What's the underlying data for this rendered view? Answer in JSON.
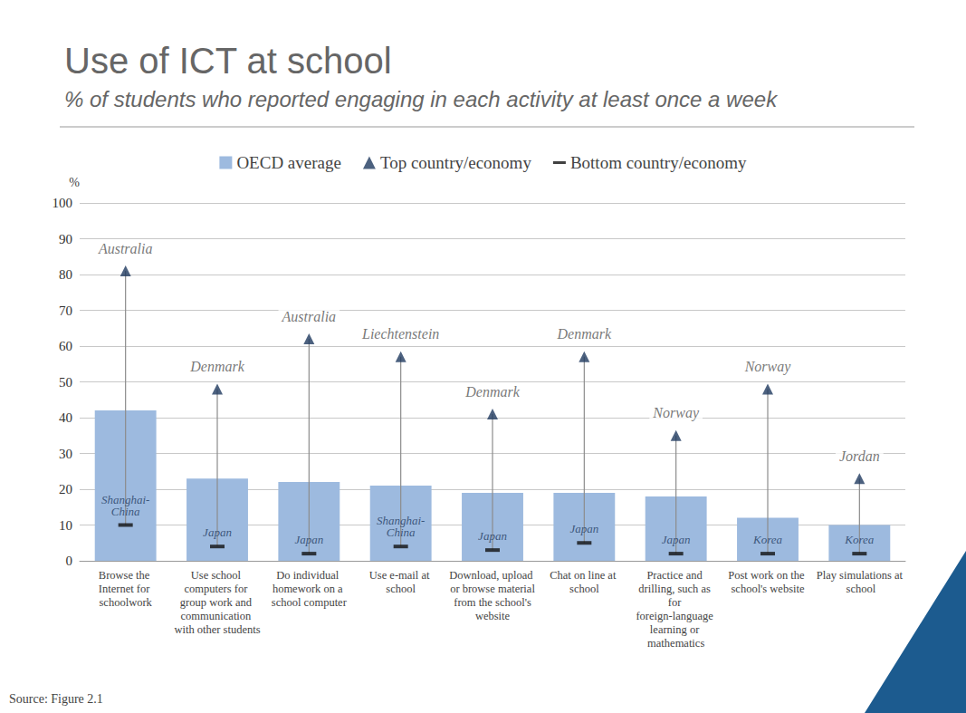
{
  "chart_data": {
    "type": "bar",
    "title": "Use of ICT at school",
    "subtitle": "% of students who reported engaging in each activity at least once a week",
    "source": "Source: Figure 2.1",
    "y_label": "%",
    "categories": [
      "Browse the Internet for schoolwork",
      "Use school computers for group work and communication with other students",
      "Do individual homework on a school computer",
      "Use e-mail at school",
      "Download, upload or browse material from the school's website",
      "Chat on line at school",
      "Practice and drilling, such as for foreign-language learning or mathematics",
      "Post work on the school's website",
      "Play simulations at school"
    ],
    "series": [
      {
        "name": "OECD average",
        "type": "bar",
        "color": "#9dbadf",
        "values": [
          42,
          23,
          22,
          21,
          19,
          19,
          18,
          12,
          10
        ]
      },
      {
        "name": "Top country/economy",
        "type": "scatter",
        "marker": "triangle",
        "color": "#1f3a5f",
        "values": [
          81,
          48,
          62,
          57,
          41,
          57,
          35,
          48,
          23
        ],
        "countries": [
          "Australia",
          "Denmark",
          "Australia",
          "Liechtenstein",
          "Denmark",
          "Denmark",
          "Norway",
          "Norway",
          "Jordan"
        ]
      },
      {
        "name": "Bottom country/economy",
        "type": "scatter",
        "marker": "dash",
        "color": "#111111",
        "values": [
          10,
          4,
          2,
          4,
          3,
          5,
          2,
          2,
          2
        ],
        "countries": [
          "Shanghai-China",
          "Japan",
          "Japan",
          "Shanghai-China",
          "Japan",
          "Japan",
          "Japan",
          "Korea",
          "Korea"
        ]
      }
    ],
    "ylim": [
      0,
      100
    ],
    "yticks": [
      0,
      10,
      20,
      30,
      40,
      50,
      60,
      70,
      80,
      90,
      100
    ],
    "grid": true,
    "legend": "top"
  }
}
